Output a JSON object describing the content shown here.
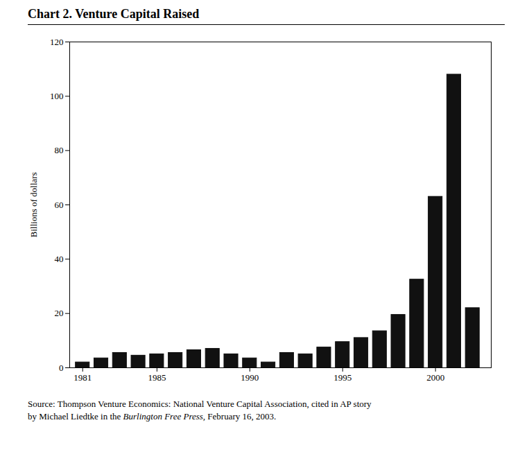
{
  "chart_data": {
    "type": "bar",
    "title": "Chart 2.  Venture Capital Raised",
    "ylabel": "Billions of dollars",
    "x": [
      1981,
      1982,
      1983,
      1984,
      1985,
      1986,
      1987,
      1988,
      1989,
      1990,
      1991,
      1992,
      1993,
      1994,
      1995,
      1996,
      1997,
      1998,
      1999,
      2000,
      2001,
      2002
    ],
    "values": [
      2.0,
      3.5,
      5.5,
      4.5,
      5.0,
      5.5,
      6.5,
      7.0,
      5.0,
      3.5,
      2.0,
      5.5,
      5.0,
      7.5,
      9.5,
      11.0,
      13.5,
      19.5,
      32.5,
      63.0,
      108.0,
      22.0
    ],
    "color": "#111111",
    "xlim": [
      1980.3,
      2003.0
    ],
    "xticks": [
      1981,
      1985,
      1990,
      1995,
      2000
    ],
    "ylim": [
      0,
      120
    ],
    "yticks": [
      0,
      20,
      40,
      60,
      80,
      100,
      120
    ],
    "grid": false,
    "caption": [
      "Source: Thompson Venture Economics: National Venture Capital Association, cited in AP story",
      [
        "by Michael Liedtke in the ",
        "Burlington Free Press,",
        " February 16, 2003."
      ]
    ]
  }
}
